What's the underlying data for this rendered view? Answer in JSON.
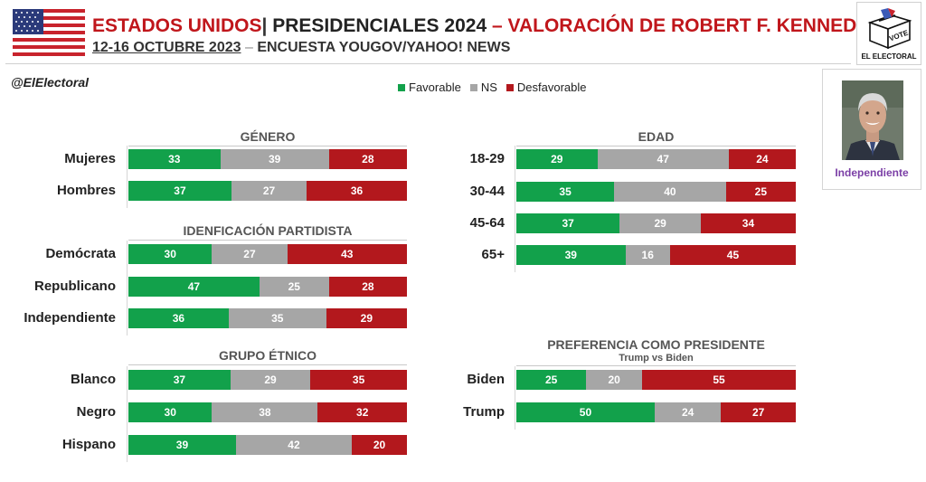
{
  "header": {
    "country": "ESTADOS UNIDOS",
    "separator": "|",
    "election": "PRESIDENCIALES 2024",
    "dash": "–",
    "topic": "VALORACIÓN DE ROBERT F. KENNEDY JR.",
    "dates": "12-16 OCTUBRE 2023",
    "dash2": "–",
    "pollster": "ENCUESTA YOUGOV/YAHOO!  NEWS"
  },
  "handle": "@ElElectoral",
  "logo": {
    "ballot_text": "VOTE",
    "brand": "EL ELECTORAL",
    "icon": "ballot-box-icon"
  },
  "candidate": {
    "label": "Independiente",
    "icon": "portrait-photo"
  },
  "colors": {
    "favorable": "#12a14b",
    "ns": "#a6a6a6",
    "desfavorable": "#b3181d",
    "title_red": "#c0161b",
    "candidate_purple": "#7b3fa6"
  },
  "legend": [
    {
      "key": "favorable",
      "label": "Favorable"
    },
    {
      "key": "ns",
      "label": "NS"
    },
    {
      "key": "desfavorable",
      "label": "Desfavorable"
    }
  ],
  "chart_data": [
    {
      "type": "bar",
      "stacked": true,
      "orientation": "horizontal",
      "title": "GÉNERO",
      "categories": [
        "Mujeres",
        "Hombres"
      ],
      "series": [
        {
          "name": "Favorable",
          "values": [
            33,
            37
          ]
        },
        {
          "name": "NS",
          "values": [
            39,
            27
          ]
        },
        {
          "name": "Desfavorable",
          "values": [
            28,
            36
          ]
        }
      ]
    },
    {
      "type": "bar",
      "stacked": true,
      "orientation": "horizontal",
      "title": "IDENFICACIÓN PARTIDISTA",
      "categories": [
        "Demócrata",
        "Republicano",
        "Independiente"
      ],
      "series": [
        {
          "name": "Favorable",
          "values": [
            30,
            47,
            36
          ]
        },
        {
          "name": "NS",
          "values": [
            27,
            25,
            35
          ]
        },
        {
          "name": "Desfavorable",
          "values": [
            43,
            28,
            29
          ]
        }
      ]
    },
    {
      "type": "bar",
      "stacked": true,
      "orientation": "horizontal",
      "title": "GRUPO ÉTNICO",
      "categories": [
        "Blanco",
        "Negro",
        "Hispano"
      ],
      "series": [
        {
          "name": "Favorable",
          "values": [
            37,
            30,
            39
          ]
        },
        {
          "name": "NS",
          "values": [
            29,
            38,
            42
          ]
        },
        {
          "name": "Desfavorable",
          "values": [
            35,
            32,
            20
          ]
        }
      ]
    },
    {
      "type": "bar",
      "stacked": true,
      "orientation": "horizontal",
      "title": "EDAD",
      "categories": [
        "18-29",
        "30-44",
        "45-64",
        "65+"
      ],
      "series": [
        {
          "name": "Favorable",
          "values": [
            29,
            35,
            37,
            39
          ]
        },
        {
          "name": "NS",
          "values": [
            47,
            40,
            29,
            16
          ]
        },
        {
          "name": "Desfavorable",
          "values": [
            24,
            25,
            34,
            45
          ]
        }
      ]
    },
    {
      "type": "bar",
      "stacked": true,
      "orientation": "horizontal",
      "title": "PREFERENCIA COMO PRESIDENTE",
      "subtitle": "Trump vs Biden",
      "categories": [
        "Biden",
        "Trump"
      ],
      "series": [
        {
          "name": "Favorable",
          "values": [
            25,
            50
          ]
        },
        {
          "name": "NS",
          "values": [
            20,
            24
          ]
        },
        {
          "name": "Desfavorable",
          "values": [
            55,
            27
          ]
        }
      ]
    }
  ]
}
